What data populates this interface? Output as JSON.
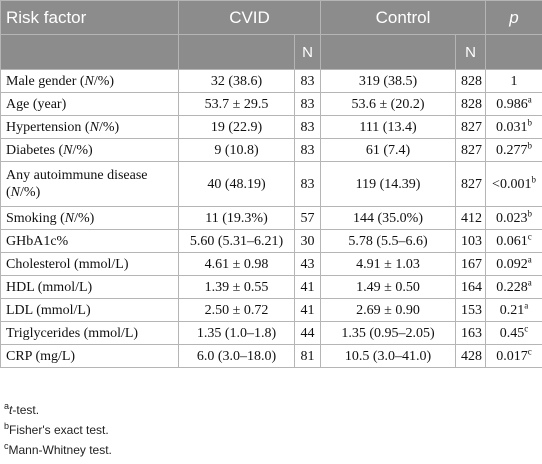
{
  "table": {
    "headers": {
      "risk_factor": "Risk factor",
      "cvid": "CVID",
      "control": "Control",
      "p": "p",
      "n": "N"
    },
    "rows": [
      {
        "factor": "Male gender (N/%)",
        "cvid": "32 (38.6)",
        "cvid_n": "83",
        "control": "319 (38.5)",
        "control_n": "828",
        "p": "1",
        "p_sup": ""
      },
      {
        "factor": "Age (year)",
        "cvid": "53.7 ± 29.5",
        "cvid_n": "83",
        "control": "53.6 ± (20.2)",
        "control_n": "828",
        "p": "0.986",
        "p_sup": "a"
      },
      {
        "factor": "Hypertension (N/%)",
        "cvid": "19 (22.9)",
        "cvid_n": "83",
        "control": "111 (13.4)",
        "control_n": "827",
        "p": "0.031",
        "p_sup": "b"
      },
      {
        "factor": "Diabetes (N/%)",
        "cvid": "9 (10.8)",
        "cvid_n": "83",
        "control": "61 (7.4)",
        "control_n": "827",
        "p": "0.277",
        "p_sup": "b"
      },
      {
        "factor": "Any autoimmune disease (N/%)",
        "cvid": "40 (48.19)",
        "cvid_n": "83",
        "control": "119 (14.39)",
        "control_n": "827",
        "p": "<0.001",
        "p_sup": "b"
      },
      {
        "factor": "Smoking (N/%)",
        "cvid": "11 (19.3%)",
        "cvid_n": "57",
        "control": "144 (35.0%)",
        "control_n": "412",
        "p": "0.023",
        "p_sup": "b"
      },
      {
        "factor": "GHbA1c%",
        "cvid": "5.60 (5.31–6.21)",
        "cvid_n": "30",
        "control": "5.78 (5.5–6.6)",
        "control_n": "103",
        "p": "0.061",
        "p_sup": "c"
      },
      {
        "factor": "Cholesterol (mmol/L)",
        "cvid": "4.61 ± 0.98",
        "cvid_n": "43",
        "control": "4.91 ± 1.03",
        "control_n": "167",
        "p": "0.092",
        "p_sup": "a"
      },
      {
        "factor": "HDL (mmol/L)",
        "cvid": "1.39 ± 0.55",
        "cvid_n": "41",
        "control": "1.49 ± 0.50",
        "control_n": "164",
        "p": "0.228",
        "p_sup": "a"
      },
      {
        "factor": "LDL (mmol/L)",
        "cvid": "2.50 ± 0.72",
        "cvid_n": "41",
        "control": "2.69 ± 0.90",
        "control_n": "153",
        "p": "0.21",
        "p_sup": "a"
      },
      {
        "factor": "Triglycerides (mmol/L)",
        "cvid": "1.35 (1.0–1.8)",
        "cvid_n": "44",
        "control": "1.35 (0.95–2.05)",
        "control_n": "163",
        "p": "0.45",
        "p_sup": "c"
      },
      {
        "factor": "CRP (mg/L)",
        "cvid": "6.0 (3.0–18.0)",
        "cvid_n": "81",
        "control": "10.5 (3.0–41.0)",
        "control_n": "428",
        "p": "0.017",
        "p_sup": "c"
      }
    ]
  },
  "footnotes": [
    {
      "mark": "a",
      "text": "t-test."
    },
    {
      "mark": "b",
      "text": "Fisher's exact test."
    },
    {
      "mark": "c",
      "text": "Mann-Whitney test."
    }
  ]
}
